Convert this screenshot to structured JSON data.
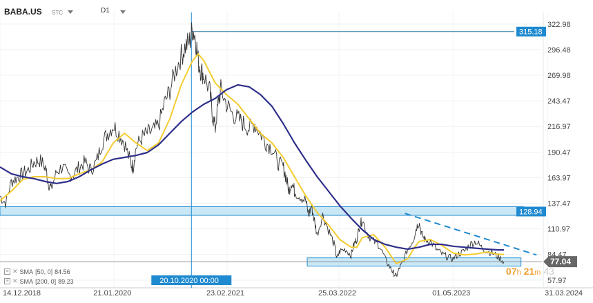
{
  "header": {
    "symbol": "BABA.US",
    "symbol_suffix": "STC",
    "timeframe": "D1"
  },
  "legend": [
    {
      "label": "SMA",
      "params": "[50, 0]",
      "value": "84.56"
    },
    {
      "label": "SMA",
      "params": "[200, 0]",
      "value": "89.23"
    }
  ],
  "countdown": {
    "hours": "07",
    "h_unit": "h",
    "minutes": "21",
    "m_unit": "m",
    "seconds": "43"
  },
  "colors": {
    "price": "#333333",
    "sma50": "#f5cc2f",
    "sma200": "#2e2f8a",
    "accent": "#1f8ad0",
    "zone_fill": "#bfe3f3",
    "zone_border": "#1f8ad0"
  },
  "chart_data": {
    "type": "line",
    "ylim": [
      50,
      335
    ],
    "y_ticks": [
      "322.98",
      "296.48",
      "269.98",
      "243.47",
      "216.97",
      "190.47",
      "163.97",
      "137.47",
      "110.97",
      "84.47",
      "57.97"
    ],
    "x_ticks": [
      {
        "label": "14.12.2018",
        "t": 0
      },
      {
        "label": "21.01.2020",
        "t": 403
      },
      {
        "label": "23.02.2021",
        "t": 802
      },
      {
        "label": "25.03.2022",
        "t": 1197
      },
      {
        "label": "01.05.2023",
        "t": 1600
      },
      {
        "label": "31.03.2024",
        "t": 1934
      }
    ],
    "crosshair": {
      "t": 676,
      "label": "20.10.2020 00:00"
    },
    "horizontal_levels": [
      {
        "value": 315.18,
        "label": "315.18"
      },
      {
        "value": 128.94,
        "label": "128.94"
      }
    ],
    "current_price": {
      "value": 77.04,
      "label": "77.04"
    },
    "zones": [
      {
        "t_start": 0,
        "t_end": 1850,
        "low": 125,
        "high": 134
      },
      {
        "t_start": 1085,
        "t_end": 1840,
        "low": 72.5,
        "high": 81
      }
    ],
    "trendline": {
      "start": {
        "t": 1430,
        "v": 127
      },
      "end": {
        "t": 1895,
        "v": 84
      }
    },
    "series": [
      {
        "name": "BABA.US",
        "points": [
          [
            0,
            145
          ],
          [
            20,
            138
          ],
          [
            40,
            160
          ],
          [
            60,
            164
          ],
          [
            80,
            168
          ],
          [
            100,
            172
          ],
          [
            120,
            180
          ],
          [
            140,
            182
          ],
          [
            160,
            175
          ],
          [
            170,
            160
          ],
          [
            180,
            152
          ],
          [
            200,
            170
          ],
          [
            220,
            175
          ],
          [
            240,
            166
          ],
          [
            260,
            168
          ],
          [
            280,
            175
          ],
          [
            300,
            180
          ],
          [
            320,
            172
          ],
          [
            340,
            180
          ],
          [
            360,
            200
          ],
          [
            380,
            210
          ],
          [
            400,
            218
          ],
          [
            420,
            210
          ],
          [
            440,
            200
          ],
          [
            460,
            180
          ],
          [
            470,
            175
          ],
          [
            480,
            195
          ],
          [
            500,
            205
          ],
          [
            520,
            210
          ],
          [
            540,
            212
          ],
          [
            560,
            218
          ],
          [
            580,
            240
          ],
          [
            600,
            255
          ],
          [
            620,
            275
          ],
          [
            640,
            290
          ],
          [
            655,
            300
          ],
          [
            670,
            305
          ],
          [
            680,
            318
          ],
          [
            690,
            310
          ],
          [
            700,
            285
          ],
          [
            710,
            275
          ],
          [
            720,
            270
          ],
          [
            740,
            255
          ],
          [
            750,
            230
          ],
          [
            760,
            215
          ],
          [
            770,
            240
          ],
          [
            780,
            255
          ],
          [
            800,
            240
          ],
          [
            820,
            230
          ],
          [
            840,
            225
          ],
          [
            860,
            220
          ],
          [
            880,
            215
          ],
          [
            900,
            220
          ],
          [
            920,
            210
          ],
          [
            940,
            200
          ],
          [
            960,
            195
          ],
          [
            980,
            180
          ],
          [
            1000,
            175
          ],
          [
            1010,
            165
          ],
          [
            1020,
            150
          ],
          [
            1030,
            160
          ],
          [
            1040,
            150
          ],
          [
            1060,
            145
          ],
          [
            1080,
            140
          ],
          [
            1090,
            125
          ],
          [
            1100,
            135
          ],
          [
            1110,
            120
          ],
          [
            1120,
            105
          ],
          [
            1140,
            125
          ],
          [
            1160,
            110
          ],
          [
            1180,
            95
          ],
          [
            1190,
            80
          ],
          [
            1200,
            88
          ],
          [
            1220,
            90
          ],
          [
            1240,
            84
          ],
          [
            1250,
            95
          ],
          [
            1260,
            100
          ],
          [
            1270,
            115
          ],
          [
            1280,
            120
          ],
          [
            1300,
            105
          ],
          [
            1320,
            98
          ],
          [
            1340,
            94
          ],
          [
            1360,
            80
          ],
          [
            1380,
            70
          ],
          [
            1390,
            65
          ],
          [
            1400,
            62
          ],
          [
            1410,
            70
          ],
          [
            1420,
            75
          ],
          [
            1440,
            90
          ],
          [
            1460,
            100
          ],
          [
            1470,
            112
          ],
          [
            1480,
            118
          ],
          [
            1490,
            105
          ],
          [
            1500,
            100
          ],
          [
            1520,
            98
          ],
          [
            1540,
            90
          ],
          [
            1560,
            85
          ],
          [
            1580,
            82
          ],
          [
            1600,
            80
          ],
          [
            1620,
            85
          ],
          [
            1640,
            88
          ],
          [
            1660,
            95
          ],
          [
            1680,
            98
          ],
          [
            1700,
            92
          ],
          [
            1720,
            88
          ],
          [
            1740,
            86
          ],
          [
            1760,
            82
          ],
          [
            1780,
            77.04
          ]
        ]
      },
      {
        "name": "SMA [50, 0]",
        "points": [
          [
            0,
            140
          ],
          [
            40,
            150
          ],
          [
            80,
            162
          ],
          [
            120,
            165
          ],
          [
            160,
            165
          ],
          [
            200,
            163
          ],
          [
            240,
            163
          ],
          [
            280,
            168
          ],
          [
            320,
            172
          ],
          [
            360,
            180
          ],
          [
            400,
            200
          ],
          [
            440,
            210
          ],
          [
            480,
            200
          ],
          [
            520,
            192
          ],
          [
            560,
            200
          ],
          [
            600,
            225
          ],
          [
            640,
            260
          ],
          [
            680,
            285
          ],
          [
            700,
            292
          ],
          [
            720,
            285
          ],
          [
            760,
            262
          ],
          [
            800,
            250
          ],
          [
            840,
            240
          ],
          [
            880,
            225
          ],
          [
            920,
            210
          ],
          [
            960,
            200
          ],
          [
            1000,
            185
          ],
          [
            1040,
            165
          ],
          [
            1080,
            145
          ],
          [
            1120,
            128
          ],
          [
            1160,
            115
          ],
          [
            1200,
            100
          ],
          [
            1240,
            92
          ],
          [
            1260,
            92
          ],
          [
            1280,
            102
          ],
          [
            1320,
            105
          ],
          [
            1360,
            92
          ],
          [
            1400,
            75
          ],
          [
            1440,
            80
          ],
          [
            1460,
            90
          ],
          [
            1480,
            98
          ],
          [
            1520,
            100
          ],
          [
            1560,
            94
          ],
          [
            1600,
            86
          ],
          [
            1640,
            84
          ],
          [
            1680,
            85
          ],
          [
            1720,
            87
          ],
          [
            1760,
            84.56
          ],
          [
            1780,
            84.56
          ]
        ]
      },
      {
        "name": "SMA [200, 0]",
        "points": [
          [
            0,
            175
          ],
          [
            40,
            168
          ],
          [
            80,
            165
          ],
          [
            120,
            163
          ],
          [
            160,
            160
          ],
          [
            200,
            158
          ],
          [
            240,
            160
          ],
          [
            280,
            165
          ],
          [
            320,
            172
          ],
          [
            360,
            178
          ],
          [
            400,
            183
          ],
          [
            440,
            185
          ],
          [
            480,
            187
          ],
          [
            520,
            190
          ],
          [
            560,
            198
          ],
          [
            600,
            210
          ],
          [
            640,
            222
          ],
          [
            680,
            232
          ],
          [
            720,
            240
          ],
          [
            760,
            246
          ],
          [
            800,
            255
          ],
          [
            840,
            260
          ],
          [
            880,
            258
          ],
          [
            920,
            250
          ],
          [
            960,
            238
          ],
          [
            1000,
            220
          ],
          [
            1040,
            200
          ],
          [
            1080,
            182
          ],
          [
            1120,
            165
          ],
          [
            1160,
            150
          ],
          [
            1200,
            135
          ],
          [
            1240,
            122
          ],
          [
            1280,
            110
          ],
          [
            1320,
            100
          ],
          [
            1360,
            95
          ],
          [
            1400,
            92
          ],
          [
            1440,
            90
          ],
          [
            1480,
            92
          ],
          [
            1520,
            95
          ],
          [
            1560,
            95
          ],
          [
            1600,
            93
          ],
          [
            1640,
            92
          ],
          [
            1680,
            91
          ],
          [
            1720,
            90
          ],
          [
            1760,
            89.23
          ],
          [
            1780,
            89.23
          ]
        ]
      }
    ]
  }
}
